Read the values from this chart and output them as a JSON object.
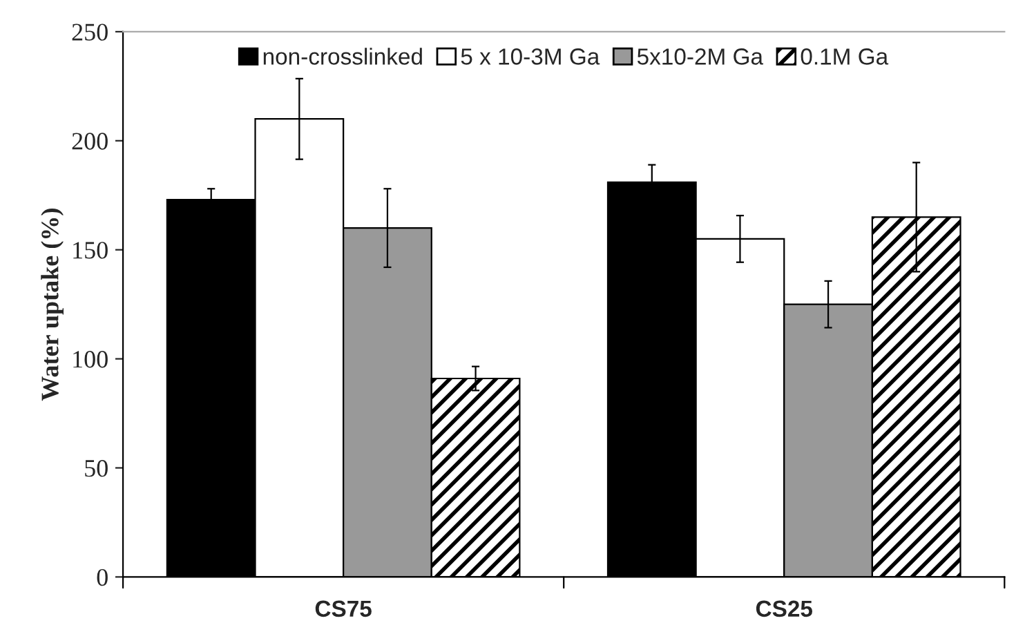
{
  "chart_data": {
    "type": "bar",
    "ylabel": "Water uptake (%)",
    "categories": [
      "CS75",
      "CS25"
    ],
    "series": [
      {
        "name": "non-crosslinked",
        "color": "#000000",
        "values": [
          173,
          181
        ],
        "errors": [
          5,
          8
        ]
      },
      {
        "name": "5 x 10-3M Ga",
        "color": "#ffffff",
        "values": [
          210,
          155
        ],
        "errors": [
          18.5,
          10.7
        ]
      },
      {
        "name": "5x10-2M Ga",
        "color": "#999999",
        "values": [
          160,
          125
        ],
        "errors": [
          18,
          10.7
        ]
      },
      {
        "name": "0.1M Ga",
        "color": "#000000",
        "values": [
          91,
          165
        ],
        "errors": [
          5.5,
          25
        ]
      }
    ],
    "ylim": [
      0,
      250
    ],
    "yticks": [
      0,
      50,
      100,
      150,
      200,
      250
    ],
    "grid": false,
    "legend": "top"
  }
}
